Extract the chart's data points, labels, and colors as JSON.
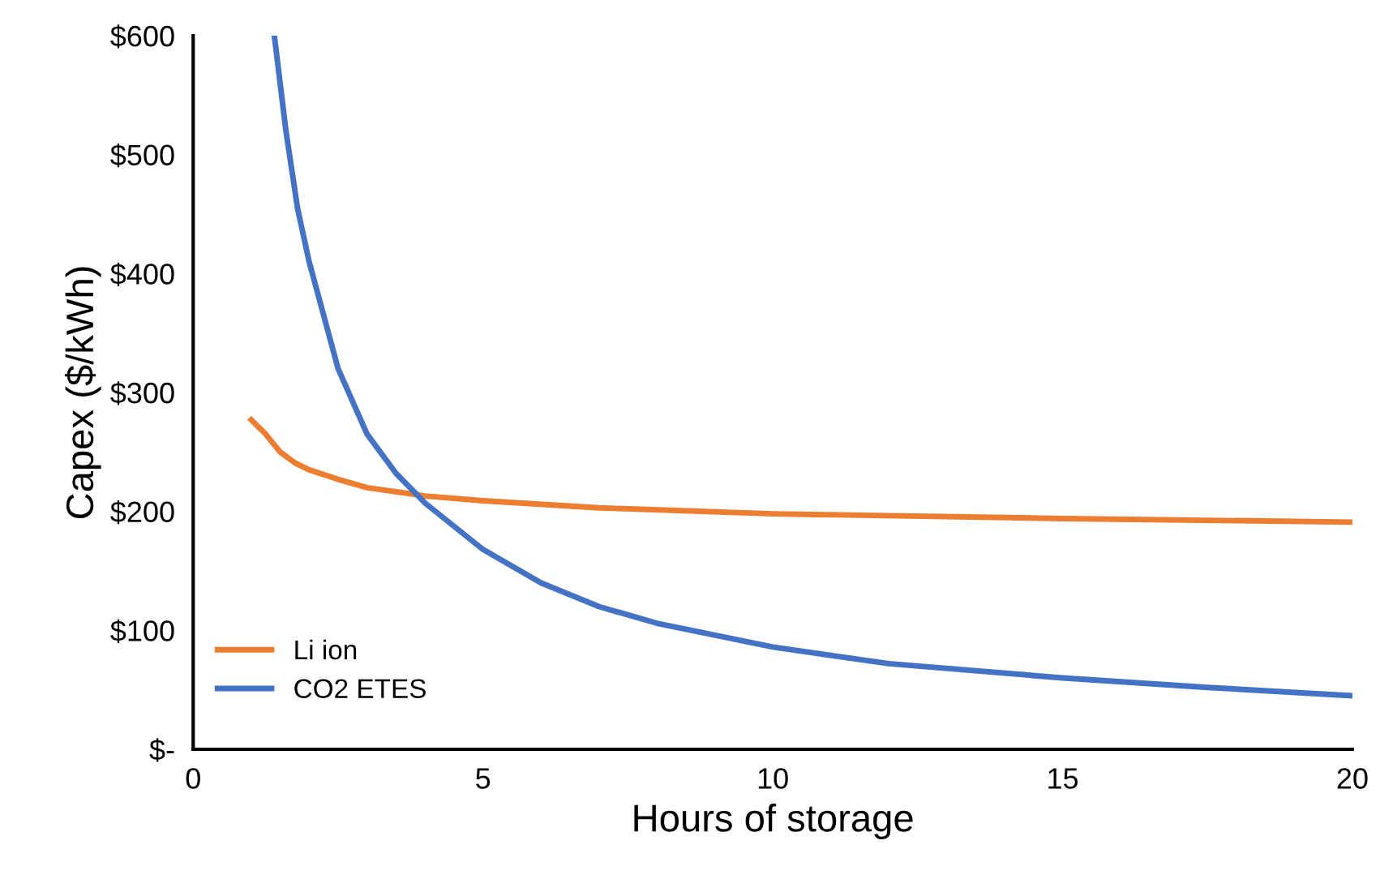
{
  "chart_data": {
    "type": "line",
    "xlabel": "Hours of storage",
    "ylabel": "Capex ($/kWh)",
    "xlim": [
      0,
      20
    ],
    "xticks": [
      0,
      5,
      10,
      15,
      20
    ],
    "ylim": [
      0,
      600
    ],
    "yticks": [
      {
        "value": 0,
        "label": "$-"
      },
      {
        "value": 100,
        "label": "$100"
      },
      {
        "value": 200,
        "label": "$200"
      },
      {
        "value": 300,
        "label": "$300"
      },
      {
        "value": 400,
        "label": "$400"
      },
      {
        "value": 500,
        "label": "$500"
      },
      {
        "value": 600,
        "label": "$600"
      }
    ],
    "grid": false,
    "legend": "lower left",
    "marker": "none",
    "line_style": "solid",
    "series": [
      {
        "name": "Li ion",
        "color": "#ed7d31",
        "x": [
          1,
          1.25,
          1.5,
          1.75,
          2,
          2.5,
          3,
          4,
          5,
          7,
          10,
          15,
          20
        ],
        "values": [
          277,
          265,
          250,
          241,
          235,
          227,
          220,
          213,
          209,
          203,
          198,
          194,
          191
        ]
      },
      {
        "name": "CO2 ETES",
        "color": "#4472c4",
        "x": [
          1.4,
          1.6,
          1.8,
          2,
          2.5,
          3,
          3.5,
          4,
          5,
          6,
          7,
          8,
          10,
          12,
          15,
          17.5,
          20
        ],
        "values": [
          600,
          520,
          455,
          410,
          320,
          265,
          232,
          207,
          168,
          140,
          120,
          106,
          86,
          72,
          60,
          52,
          45
        ]
      }
    ]
  }
}
